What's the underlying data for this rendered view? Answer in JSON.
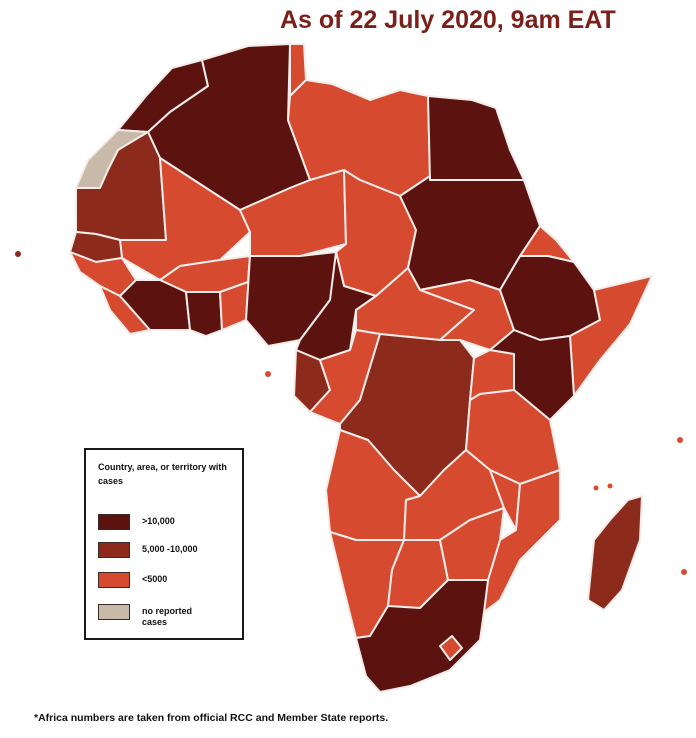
{
  "title": "As of 22 July 2020, 9am EAT",
  "legend": {
    "title": "Country, area, or territory with cases",
    "items": [
      {
        "label": ">10,000",
        "color": "#5c130f"
      },
      {
        "label": "5,000 -10,000",
        "color": "#8c2a1b"
      },
      {
        "label": "<5000",
        "color": "#d64a2f"
      },
      {
        "label": "no reported cases",
        "color": "#c9b9a9"
      }
    ]
  },
  "footnote": "*Africa numbers are taken from official RCC and Member State reports.",
  "colors": {
    "over_10000": "#5c130f",
    "between_5000_10000": "#8c2a1b",
    "under_5000": "#d64a2f",
    "no_cases": "#c9b9a9",
    "border": "#f3ecea"
  }
}
